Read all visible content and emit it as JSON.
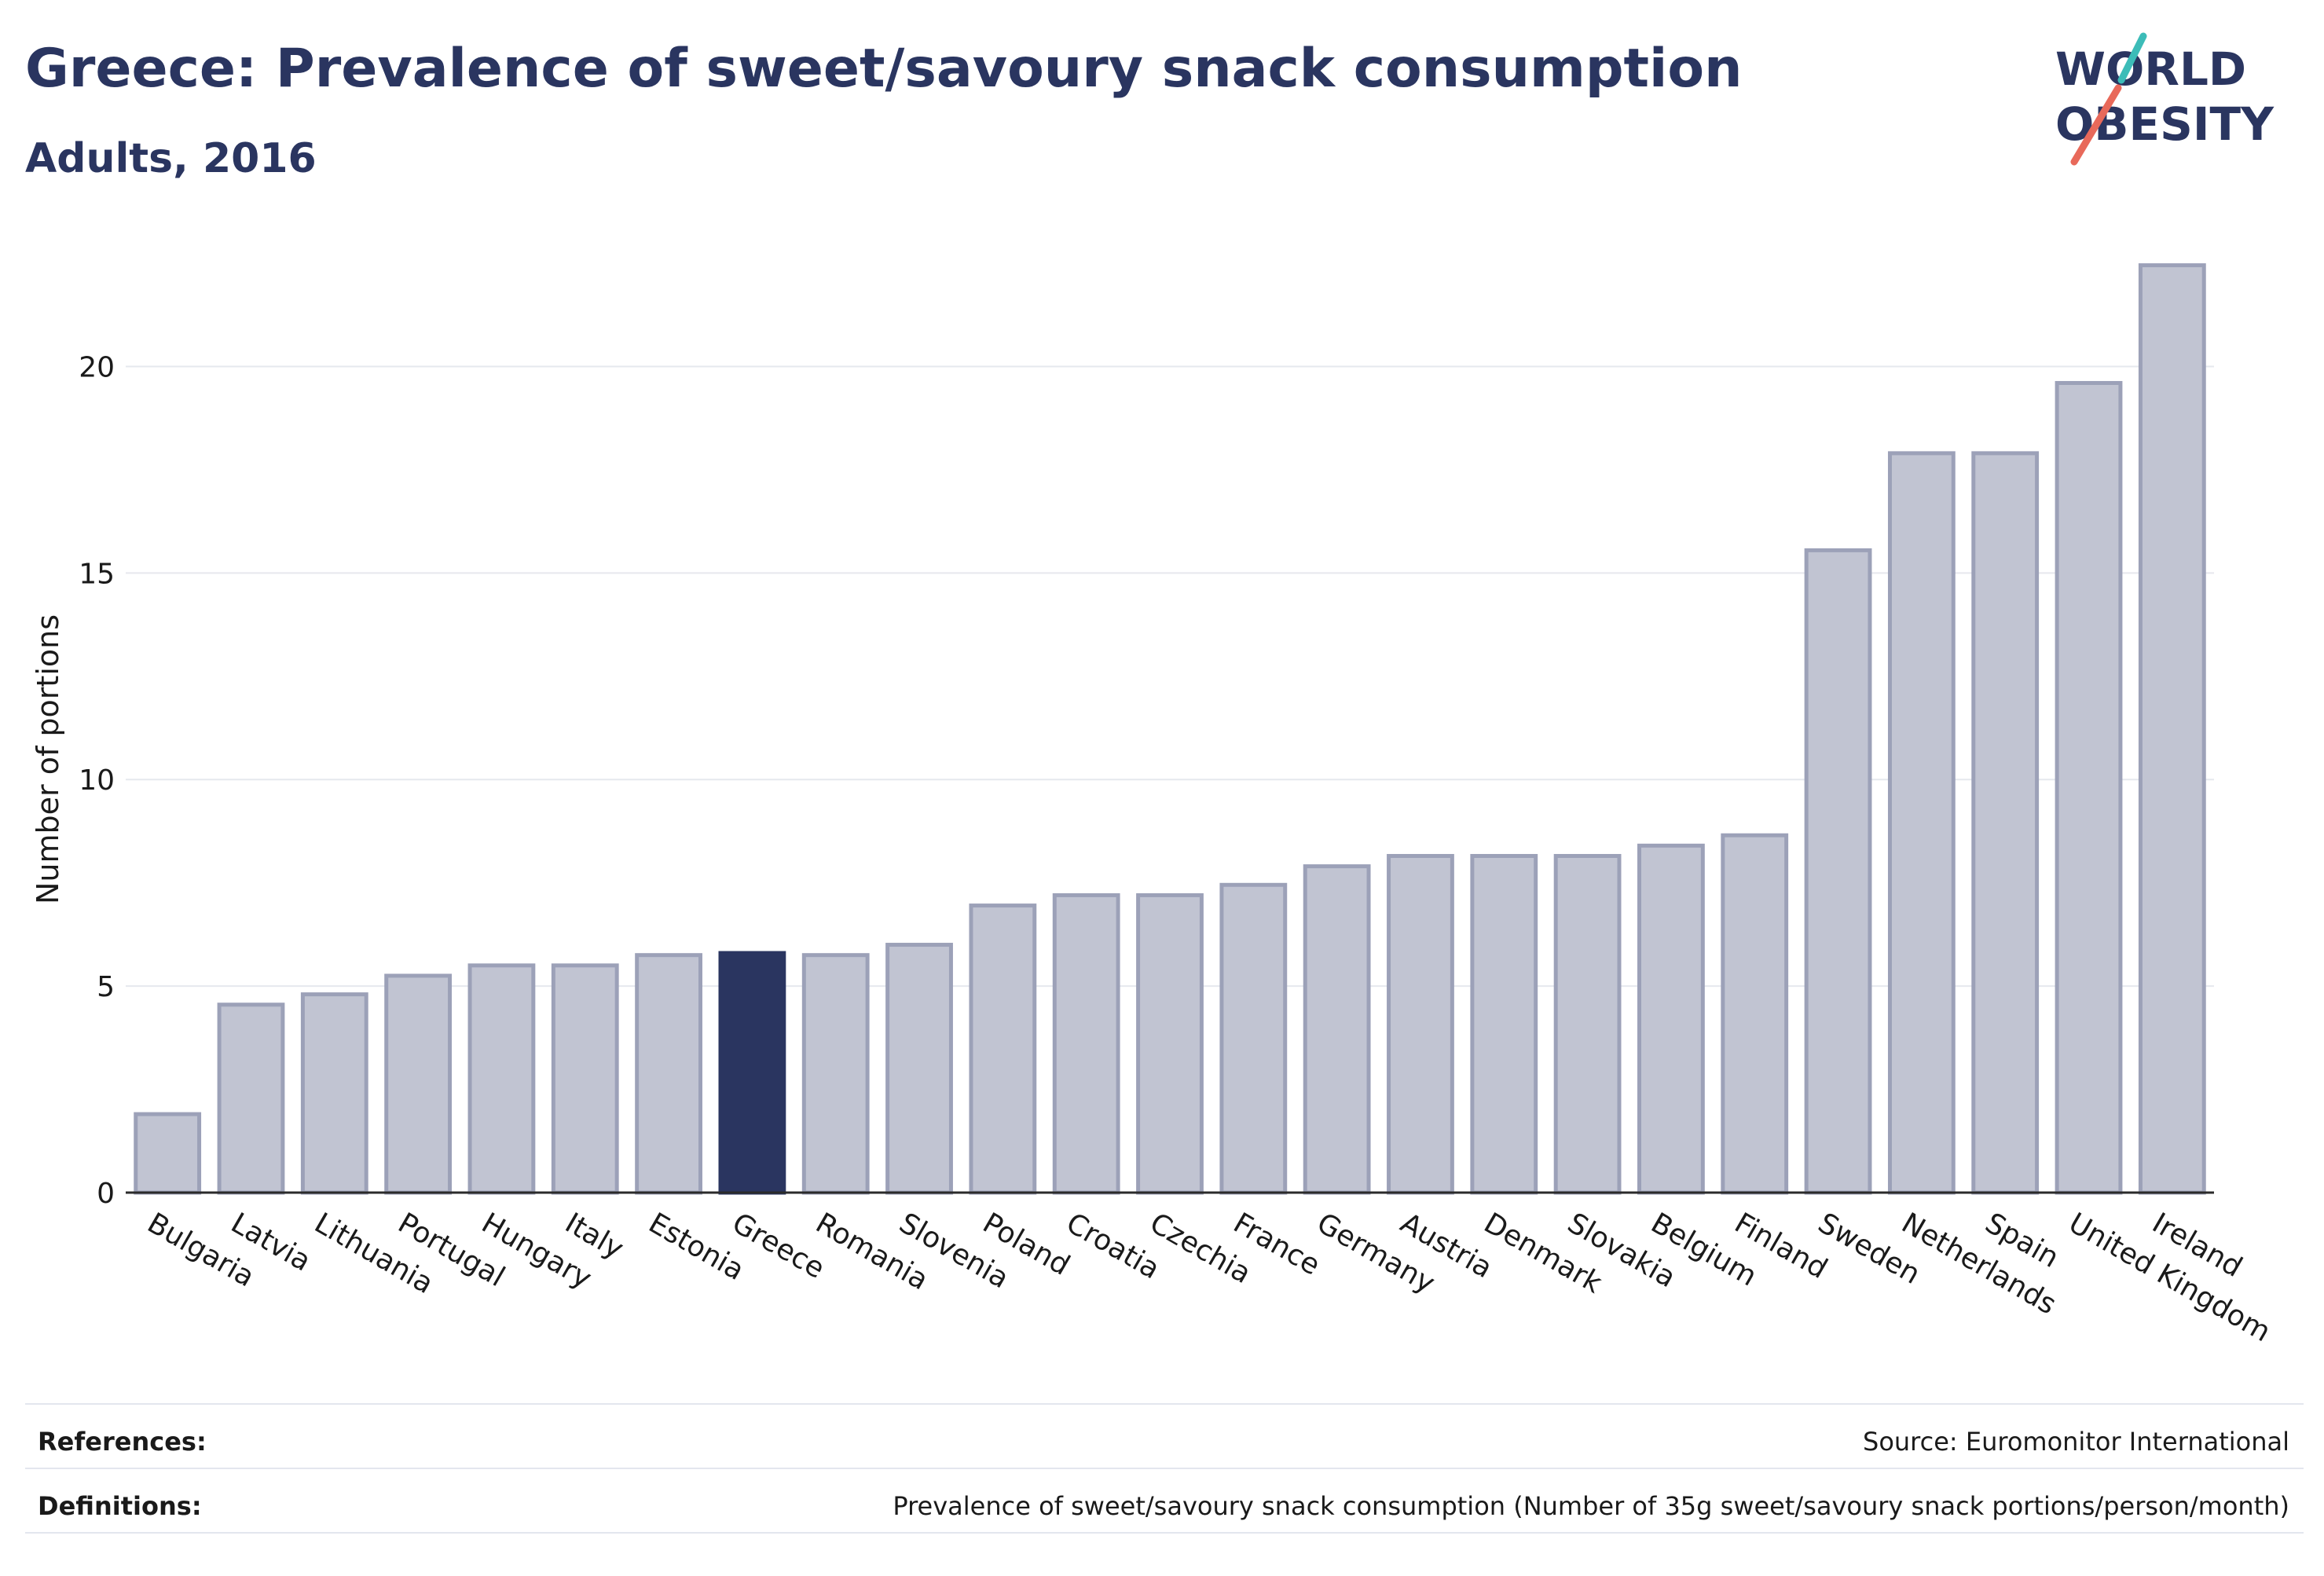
{
  "header": {
    "title": "Greece: Prevalence of sweet/savoury snack consumption",
    "subtitle": "Adults, 2016",
    "logo_line1": "WORLD",
    "logo_line2": "OBESITY"
  },
  "colors": {
    "title": "#2a3560",
    "bar": "#c1c4d2",
    "bar_stroke": "#9ca1b8",
    "highlight": "#2a3560",
    "grid": "#e6e8ee",
    "logo_teal": "#3cbcb8",
    "logo_red": "#e8695a"
  },
  "chart_data": {
    "type": "bar",
    "title": "Greece: Prevalence of sweet/savoury snack consumption",
    "subtitle": "Adults, 2016",
    "xlabel": "",
    "ylabel": "Number of portions",
    "ylim": [
      0,
      22.5
    ],
    "yticks": [
      0,
      5,
      10,
      15,
      20
    ],
    "grid": true,
    "highlight": "Greece",
    "categories": [
      "Bulgaria",
      "Latvia",
      "Lithuania",
      "Portugal",
      "Hungary",
      "Italy",
      "Estonia",
      "Greece",
      "Romania",
      "Slovenia",
      "Poland",
      "Croatia",
      "Czechia",
      "France",
      "Germany",
      "Austria",
      "Denmark",
      "Slovakia",
      "Belgium",
      "Finland",
      "Sweden",
      "Netherlands",
      "Spain",
      "United Kingdom",
      "Ireland"
    ],
    "values": [
      1.9,
      4.55,
      4.8,
      5.25,
      5.5,
      5.5,
      5.75,
      5.8,
      5.75,
      6.0,
      6.95,
      7.2,
      7.2,
      7.45,
      7.9,
      8.15,
      8.15,
      8.15,
      8.4,
      8.65,
      15.55,
      17.9,
      17.9,
      19.6,
      22.45
    ]
  },
  "footer": {
    "references_label": "References:",
    "references_value": "Source: Euromonitor International",
    "definitions_label": "Definitions:",
    "definitions_value": "Prevalence of sweet/savoury snack consumption (Number of 35g sweet/savoury snack portions/person/month)"
  }
}
